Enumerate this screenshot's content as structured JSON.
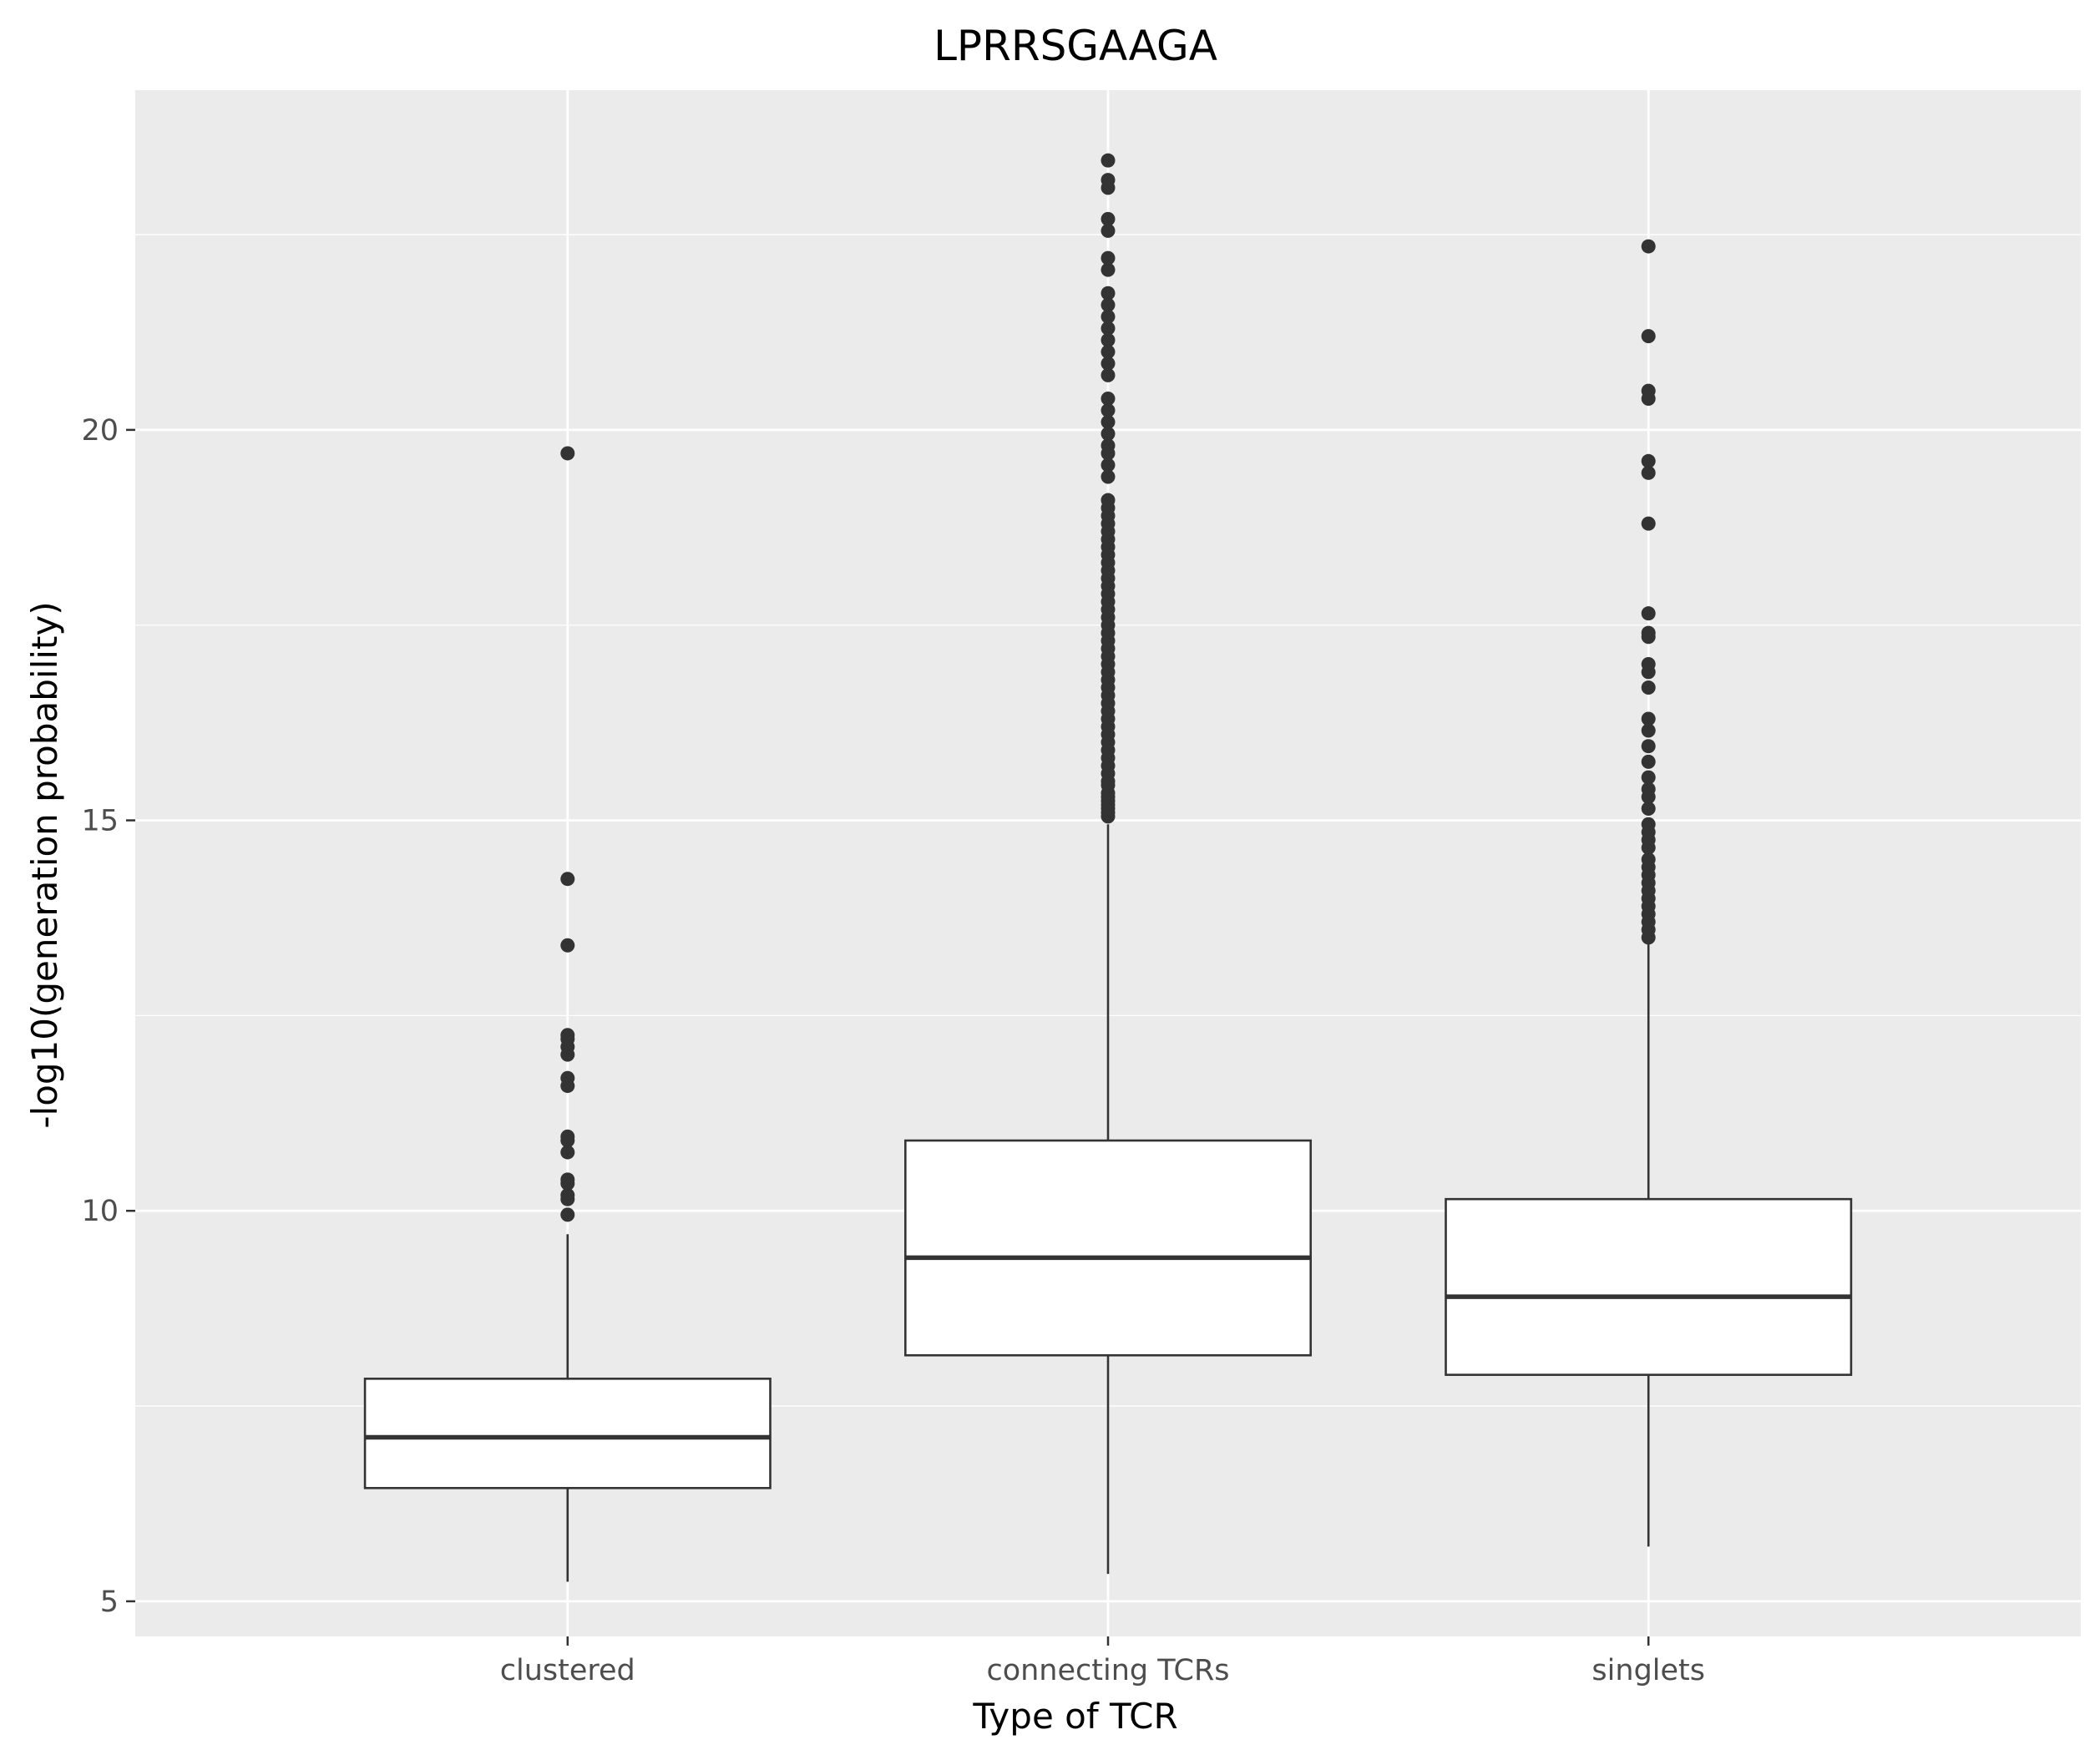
{
  "chart_data": {
    "type": "box",
    "title": "LPRRSGAAGA",
    "xlabel": "Type of TCR",
    "ylabel": "-log10(generation probability)",
    "categories": [
      "clustered",
      "connecting TCRs",
      "singlets"
    ],
    "ylim": [
      4.55,
      24.35
    ],
    "yticks": [
      5,
      10,
      15,
      20
    ],
    "grid": true,
    "legend": "none",
    "colors": {
      "panel_background": "#ebebeb",
      "grid": "#ffffff",
      "box_fill": "#ffffff",
      "box_line": "#333333",
      "outlier": "#333333",
      "tick_label": "#4d4d4d"
    },
    "boxes": [
      {
        "category": "clustered",
        "whisker_low": 5.25,
        "q1": 6.45,
        "median": 7.1,
        "q3": 7.85,
        "whisker_high": 9.7,
        "outliers": [
          9.95,
          10.15,
          10.2,
          10.35,
          10.4,
          10.75,
          10.9,
          10.95,
          11.6,
          11.7,
          12.0,
          12.1,
          12.2,
          12.25,
          13.4,
          14.25,
          19.7
        ]
      },
      {
        "category": "connecting TCRs",
        "whisker_low": 5.35,
        "q1": 8.15,
        "median": 9.4,
        "q3": 10.9,
        "whisker_high": 14.95,
        "outliers": [
          15.05,
          15.1,
          15.15,
          15.2,
          15.25,
          15.3,
          15.35,
          15.45,
          15.5,
          15.6,
          15.7,
          15.8,
          15.9,
          16.0,
          16.1,
          16.2,
          16.3,
          16.4,
          16.5,
          16.6,
          16.7,
          16.8,
          16.9,
          17.0,
          17.1,
          17.2,
          17.3,
          17.4,
          17.5,
          17.6,
          17.7,
          17.8,
          17.9,
          18.0,
          18.1,
          18.2,
          18.3,
          18.4,
          18.5,
          18.6,
          18.7,
          18.8,
          18.9,
          19.0,
          19.1,
          19.4,
          19.55,
          19.7,
          19.8,
          19.95,
          20.1,
          20.25,
          20.4,
          20.7,
          20.85,
          21.0,
          21.15,
          21.3,
          21.45,
          21.6,
          21.75,
          22.05,
          22.2,
          22.55,
          22.7,
          23.1,
          23.2,
          23.45
        ]
      },
      {
        "category": "singlets",
        "whisker_low": 5.7,
        "q1": 7.9,
        "median": 8.9,
        "q3": 10.15,
        "whisker_high": 13.45,
        "outliers": [
          13.5,
          13.6,
          13.7,
          13.8,
          13.9,
          14.0,
          14.1,
          14.2,
          14.3,
          14.4,
          14.5,
          14.65,
          14.75,
          14.85,
          14.95,
          15.15,
          15.3,
          15.4,
          15.55,
          15.75,
          15.95,
          16.15,
          16.3,
          16.7,
          16.9,
          17.0,
          17.35,
          17.4,
          17.65,
          18.8,
          19.45,
          19.6,
          20.4,
          20.5,
          21.2,
          22.35
        ]
      }
    ]
  }
}
